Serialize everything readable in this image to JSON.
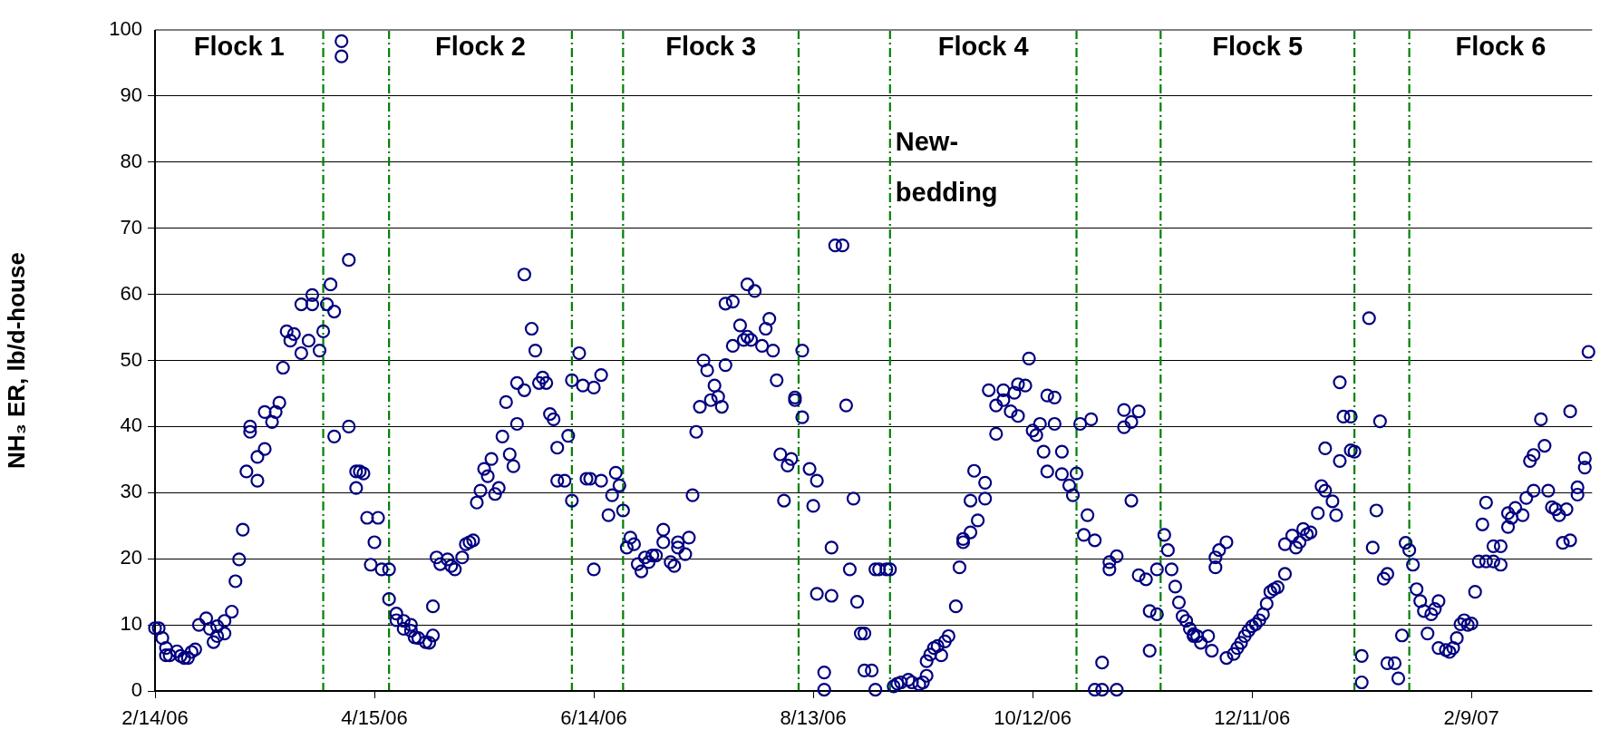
{
  "chart_data": {
    "type": "scatter",
    "ylabel": "NH₃ ER, lb/d-house",
    "color": "#000080",
    "marker": "circle",
    "grid": "y",
    "xlim": [
      "2006-02-14",
      "2007-03-14"
    ],
    "xticks": [
      {
        "value": "2006-02-14",
        "label": "2/14/06"
      },
      {
        "value": "2006-04-15",
        "label": "4/15/06"
      },
      {
        "value": "2006-06-14",
        "label": "6/14/06"
      },
      {
        "value": "2006-08-13",
        "label": "8/13/06"
      },
      {
        "value": "2006-10-12",
        "label": "10/12/06"
      },
      {
        "value": "2006-12-11",
        "label": "12/11/06"
      },
      {
        "value": "2007-02-09",
        "label": "2/9/07"
      }
    ],
    "ylim": [
      0,
      100
    ],
    "yticks": [
      0,
      10,
      20,
      30,
      40,
      50,
      60,
      70,
      80,
      90,
      100
    ],
    "ref_lines": [
      {
        "axis": "x",
        "value": "2006-04-01",
        "color": "#008000",
        "line_style": "dashed"
      },
      {
        "axis": "x",
        "value": "2006-04-19",
        "color": "#008000",
        "line_style": "dashed"
      },
      {
        "axis": "x",
        "value": "2006-06-08",
        "color": "#008000",
        "line_style": "dashed"
      },
      {
        "axis": "x",
        "value": "2006-06-22",
        "color": "#008000",
        "line_style": "dashed"
      },
      {
        "axis": "x",
        "value": "2006-08-09",
        "color": "#008000",
        "line_style": "dashed"
      },
      {
        "axis": "x",
        "value": "2006-09-03",
        "color": "#008000",
        "line_style": "dashed"
      },
      {
        "axis": "x",
        "value": "2006-10-24",
        "color": "#008000",
        "line_style": "dashed"
      },
      {
        "axis": "x",
        "value": "2006-11-16",
        "color": "#008000",
        "line_style": "dashed"
      },
      {
        "axis": "x",
        "value": "2007-01-08",
        "color": "#008000",
        "line_style": "dashed"
      },
      {
        "axis": "x",
        "value": "2007-01-23",
        "color": "#008000",
        "line_style": "dashed"
      }
    ],
    "annotations": [
      "Flock 1",
      "Flock 2",
      "Flock 3",
      "Flock 4",
      "Flock 5",
      "Flock 6",
      "New-\nbedding"
    ],
    "x": [
      "2006-02-14",
      "2006-02-15",
      "2006-02-16",
      "2006-02-17",
      "2006-02-17",
      "2006-02-18",
      "2006-02-20",
      "2006-02-21",
      "2006-02-22",
      "2006-02-23",
      "2006-02-24",
      "2006-02-25",
      "2006-02-26",
      "2006-02-28",
      "2006-03-01",
      "2006-03-02",
      "2006-03-03",
      "2006-03-03",
      "2006-03-05",
      "2006-03-05",
      "2006-03-07",
      "2006-03-08",
      "2006-03-09",
      "2006-03-10",
      "2006-03-11",
      "2006-03-12",
      "2006-03-12",
      "2006-03-14",
      "2006-03-14",
      "2006-03-16",
      "2006-03-16",
      "2006-03-18",
      "2006-03-19",
      "2006-03-20",
      "2006-03-21",
      "2006-03-22",
      "2006-03-23",
      "2006-03-24",
      "2006-03-26",
      "2006-03-26",
      "2006-03-28",
      "2006-03-29",
      "2006-03-29",
      "2006-03-31",
      "2006-04-01",
      "2006-04-02",
      "2006-04-03",
      "2006-04-04",
      "2006-04-04",
      "2006-04-06",
      "2006-04-06",
      "2006-04-08",
      "2006-04-08",
      "2006-04-10",
      "2006-04-10",
      "2006-04-11",
      "2006-04-12",
      "2006-04-13",
      "2006-04-14",
      "2006-04-15",
      "2006-04-16",
      "2006-04-17",
      "2006-04-19",
      "2006-04-19",
      "2006-04-21",
      "2006-04-21",
      "2006-04-23",
      "2006-04-23",
      "2006-04-25",
      "2006-04-25",
      "2006-04-26",
      "2006-04-27",
      "2006-04-29",
      "2006-04-30",
      "2006-05-01",
      "2006-05-01",
      "2006-05-02",
      "2006-05-03",
      "2006-05-05",
      "2006-05-06",
      "2006-05-07",
      "2006-05-09",
      "2006-05-10",
      "2006-05-11",
      "2006-05-12",
      "2006-05-13",
      "2006-05-14",
      "2006-05-15",
      "2006-05-16",
      "2006-05-17",
      "2006-05-18",
      "2006-05-19",
      "2006-05-20",
      "2006-05-21",
      "2006-05-22",
      "2006-05-23",
      "2006-05-24",
      "2006-05-24",
      "2006-05-26",
      "2006-05-26",
      "2006-05-28",
      "2006-05-29",
      "2006-05-30",
      "2006-05-31",
      "2006-06-01",
      "2006-06-02",
      "2006-06-03",
      "2006-06-04",
      "2006-06-04",
      "2006-06-06",
      "2006-06-07",
      "2006-06-08",
      "2006-06-08",
      "2006-06-10",
      "2006-06-11",
      "2006-06-12",
      "2006-06-13",
      "2006-06-14",
      "2006-06-14",
      "2006-06-16",
      "2006-06-16",
      "2006-06-18",
      "2006-06-19",
      "2006-06-20",
      "2006-06-21",
      "2006-06-22",
      "2006-06-23",
      "2006-06-24",
      "2006-06-25",
      "2006-06-26",
      "2006-06-27",
      "2006-06-28",
      "2006-06-29",
      "2006-06-30",
      "2006-07-01",
      "2006-07-03",
      "2006-07-03",
      "2006-07-05",
      "2006-07-06",
      "2006-07-07",
      "2006-07-07",
      "2006-07-09",
      "2006-07-10",
      "2006-07-11",
      "2006-07-12",
      "2006-07-13",
      "2006-07-14",
      "2006-07-15",
      "2006-07-16",
      "2006-07-17",
      "2006-07-18",
      "2006-07-19",
      "2006-07-20",
      "2006-07-20",
      "2006-07-22",
      "2006-07-22",
      "2006-07-24",
      "2006-07-25",
      "2006-07-26",
      "2006-07-26",
      "2006-07-27",
      "2006-07-28",
      "2006-07-30",
      "2006-07-31",
      "2006-08-01",
      "2006-08-02",
      "2006-08-03",
      "2006-08-04",
      "2006-08-05",
      "2006-08-06",
      "2006-08-07",
      "2006-08-08",
      "2006-08-08",
      "2006-08-10",
      "2006-08-10",
      "2006-08-12",
      "2006-08-13",
      "2006-08-14",
      "2006-08-14",
      "2006-08-16",
      "2006-08-16",
      "2006-08-18",
      "2006-08-18",
      "2006-08-19",
      "2006-08-21",
      "2006-08-22",
      "2006-08-23",
      "2006-08-24",
      "2006-08-25",
      "2006-08-26",
      "2006-08-27",
      "2006-08-27",
      "2006-08-29",
      "2006-08-30",
      "2006-08-30",
      "2006-08-31",
      "2006-09-02",
      "2006-09-03",
      "2006-09-04",
      "2006-09-05",
      "2006-09-06",
      "2006-09-08",
      "2006-09-09",
      "2006-09-11",
      "2006-09-12",
      "2006-09-13",
      "2006-09-13",
      "2006-09-14",
      "2006-09-15",
      "2006-09-16",
      "2006-09-17",
      "2006-09-18",
      "2006-09-19",
      "2006-09-21",
      "2006-09-22",
      "2006-09-23",
      "2006-09-23",
      "2006-09-25",
      "2006-09-25",
      "2006-09-27",
      "2006-09-26",
      "2006-09-29",
      "2006-09-29",
      "2006-09-30",
      "2006-10-02",
      "2006-10-02",
      "2006-10-04",
      "2006-10-04",
      "2006-10-06",
      "2006-10-07",
      "2006-10-08",
      "2006-10-08",
      "2006-10-10",
      "2006-10-11",
      "2006-10-12",
      "2006-10-13",
      "2006-10-14",
      "2006-10-15",
      "2006-10-16",
      "2006-10-16",
      "2006-10-18",
      "2006-10-18",
      "2006-10-20",
      "2006-10-20",
      "2006-10-22",
      "2006-10-23",
      "2006-10-24",
      "2006-10-25",
      "2006-10-26",
      "2006-10-27",
      "2006-10-28",
      "2006-10-29",
      "2006-10-29",
      "2006-10-31",
      "2006-10-31",
      "2006-11-02",
      "2006-11-02",
      "2006-11-04",
      "2006-11-04",
      "2006-11-06",
      "2006-11-06",
      "2006-11-08",
      "2006-11-08",
      "2006-11-10",
      "2006-11-10",
      "2006-11-12",
      "2006-11-13",
      "2006-11-13",
      "2006-11-15",
      "2006-11-15",
      "2006-11-17",
      "2006-11-18",
      "2006-11-19",
      "2006-11-20",
      "2006-11-21",
      "2006-11-22",
      "2006-11-23",
      "2006-11-24",
      "2006-11-25",
      "2006-11-25",
      "2006-11-26",
      "2006-11-27",
      "2006-11-29",
      "2006-11-30",
      "2006-12-01",
      "2006-12-01",
      "2006-12-02",
      "2006-12-04",
      "2006-12-04",
      "2006-12-06",
      "2006-12-07",
      "2006-12-08",
      "2006-12-09",
      "2006-12-10",
      "2006-12-11",
      "2006-12-12",
      "2006-12-13",
      "2006-12-14",
      "2006-12-15",
      "2006-12-16",
      "2006-12-17",
      "2006-12-18",
      "2006-12-20",
      "2006-12-20",
      "2006-12-22",
      "2006-12-23",
      "2006-12-24",
      "2006-12-25",
      "2006-12-26",
      "2006-12-27",
      "2006-12-29",
      "2006-12-30",
      "2006-12-31",
      "2006-12-31",
      "2007-01-02",
      "2007-01-03",
      "2007-01-04",
      "2007-01-04",
      "2007-01-05",
      "2007-01-07",
      "2007-01-07",
      "2007-01-08",
      "2007-01-10",
      "2007-01-10",
      "2007-01-12",
      "2007-01-13",
      "2007-01-14",
      "2007-01-15",
      "2007-01-16",
      "2007-01-17",
      "2007-01-17",
      "2007-01-19",
      "2007-01-20",
      "2007-01-21",
      "2007-01-22",
      "2007-01-23",
      "2007-01-24",
      "2007-01-25",
      "2007-01-26",
      "2007-01-27",
      "2007-01-28",
      "2007-01-29",
      "2007-01-30",
      "2007-01-31",
      "2007-01-31",
      "2007-02-02",
      "2007-02-03",
      "2007-02-04",
      "2007-02-05",
      "2007-02-06",
      "2007-02-07",
      "2007-02-08",
      "2007-02-09",
      "2007-02-10",
      "2007-02-11",
      "2007-02-12",
      "2007-02-13",
      "2007-02-13",
      "2007-02-15",
      "2007-02-15",
      "2007-02-17",
      "2007-02-17",
      "2007-02-19",
      "2007-02-19",
      "2007-02-20",
      "2007-02-21",
      "2007-02-23",
      "2007-02-24",
      "2007-02-25",
      "2007-02-26",
      "2007-02-26",
      "2007-02-28",
      "2007-03-01",
      "2007-03-02",
      "2007-03-03",
      "2007-03-04",
      "2007-03-05",
      "2007-03-06",
      "2007-03-07",
      "2007-03-08",
      "2007-03-08",
      "2007-03-10",
      "2007-03-10",
      "2007-03-12",
      "2007-03-12",
      "2007-03-13"
    ],
    "values": [
      9.5,
      9.5,
      8,
      6.5,
      5.4,
      5.4,
      6,
      5.3,
      5,
      5,
      5.9,
      6.3,
      10,
      11,
      9.4,
      7.4,
      8.3,
      9.8,
      10.6,
      8.7,
      12,
      16.6,
      19.9,
      24.4,
      33.2,
      40,
      39.2,
      31.8,
      35.4,
      36.6,
      42.2,
      40.7,
      42.2,
      43.6,
      48.9,
      54.4,
      53,
      54,
      51.1,
      58.5,
      53,
      59.9,
      58.5,
      51.5,
      54.4,
      58.5,
      61.5,
      57.4,
      38.5,
      98.3,
      96,
      65.2,
      40,
      30.7,
      33.2,
      33.2,
      32.9,
      26.2,
      19.1,
      22.5,
      26.2,
      18.4,
      18.4,
      13.9,
      11.7,
      10.7,
      9.4,
      10.6,
      10,
      9.1,
      8.1,
      8,
      7.4,
      7.3,
      8.4,
      12.8,
      20.2,
      19.2,
      19.9,
      18.9,
      18.4,
      20.2,
      22.2,
      22.5,
      22.8,
      28.5,
      30.3,
      33.6,
      32.5,
      35.1,
      29.8,
      30.7,
      38.5,
      43.7,
      35.8,
      34,
      40.4,
      46.6,
      45.5,
      63,
      54.8,
      51.5,
      46.6,
      47.4,
      46.6,
      41.9,
      41.1,
      36.8,
      31.8,
      31.8,
      38.6,
      28.8,
      47,
      51.1,
      46.2,
      32.1,
      32.1,
      18.4,
      45.9,
      47.8,
      31.8,
      26.6,
      29.6,
      33,
      31.1,
      27.3,
      21.7,
      23.2,
      22.2,
      19.2,
      18.1,
      20.2,
      19.5,
      20.5,
      20.5,
      24.4,
      22.5,
      19.5,
      18.9,
      22.5,
      21.7,
      20.7,
      23.2,
      29.6,
      39.2,
      43,
      50,
      48.5,
      44,
      46.2,
      44.5,
      43,
      49.3,
      58.6,
      58.9,
      52.2,
      55.3,
      53.1,
      61.5,
      53.6,
      53.1,
      60.5,
      52.2,
      54.8,
      56.3,
      51.5,
      47,
      35.8,
      28.8,
      34.1,
      35.1,
      44,
      44.4,
      51.5,
      41.4,
      33.6,
      28,
      31.8,
      14.7,
      0.2,
      2.8,
      14.4,
      21.7,
      67.4,
      67.4,
      43.2,
      18.4,
      29.1,
      13.5,
      8.7,
      8.7,
      3.1,
      3.1,
      0.2,
      18.4,
      18.4,
      18.4,
      18.4,
      0.7,
      1.1,
      1.3,
      1.7,
      1.3,
      1,
      1.3,
      2.3,
      4.5,
      5.5,
      6.5,
      6.8,
      5.4,
      7.5,
      8.3,
      12.8,
      18.7,
      22.5,
      23,
      24,
      28.8,
      25.8,
      33.3,
      29.1,
      31.5,
      45.5,
      38.9,
      43.2,
      45.5,
      44,
      42.3,
      45.1,
      46.4,
      41.6,
      46.2,
      50.3,
      39.4,
      38.7,
      40.4,
      36.2,
      33.2,
      44.7,
      44.4,
      40.4,
      32.8,
      36.2,
      31.1,
      29.6,
      32.9,
      40.4,
      23.6,
      26.6,
      41.1,
      22.8,
      0.2,
      0.2,
      4.3,
      18.4,
      19.5,
      20.4,
      0.2,
      42.5,
      39.9,
      28.8,
      40.7,
      42.3,
      17.5,
      16.9,
      6.1,
      12.1,
      11.6,
      18.4,
      23.6,
      21.3,
      18.4,
      15.8,
      13.4,
      11.3,
      10.6,
      9.4,
      8.6,
      8.3,
      8.3,
      7.3,
      8.3,
      6.1,
      18.7,
      20.2,
      21.3,
      22.5,
      5,
      5.6,
      6.5,
      7.3,
      8.3,
      9.1,
      9.8,
      10.1,
      10.7,
      11.6,
      13.2,
      15,
      15.4,
      15.7,
      17.7,
      22.2,
      23.5,
      21.7,
      22.5,
      24.5,
      23.7,
      24,
      26.9,
      31,
      36.7,
      30.3,
      28.7,
      26.6,
      34.8,
      46.7,
      41.5,
      41.5,
      36.4,
      36.2,
      5.3,
      1.3,
      56.4,
      21.7,
      27.3,
      40.8,
      17,
      17.7,
      4.2,
      4.2,
      1.9,
      8.4,
      22.4,
      21.3,
      19.1,
      15.4,
      13.6,
      12.1,
      8.7,
      11.6,
      12.4,
      13.6,
      6.5,
      6.2,
      5.9,
      6.5,
      8,
      10.1,
      10.7,
      10,
      10.2,
      15,
      19.6,
      25.2,
      28.5,
      19.6,
      21.9,
      19.6,
      19.1,
      21.9,
      24.8,
      26.9,
      26.2,
      27.7,
      26.6,
      29.2,
      34.8,
      30.3,
      35.7,
      41.1,
      37.1,
      30.3,
      27.8,
      27.5,
      26.6,
      22.4,
      27.5,
      22.8,
      42.3,
      30.8,
      29.7,
      33.8,
      35.2,
      51.3
    ]
  }
}
